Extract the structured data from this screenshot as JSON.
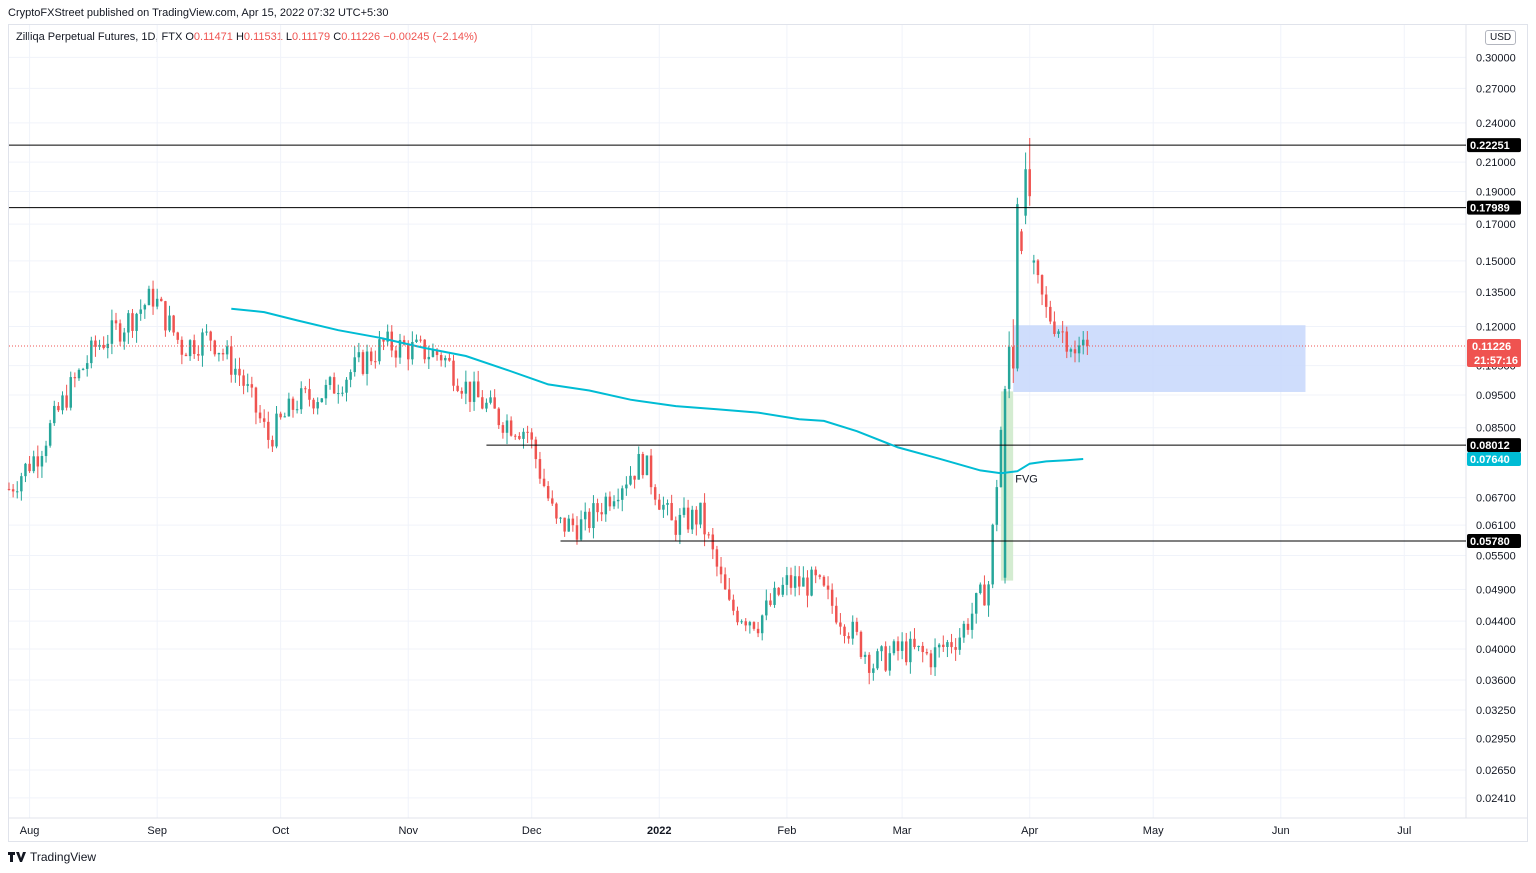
{
  "header": {
    "publisher": "CryptoFXStreet published on TradingView.com, Apr 15, 2022 07:32 UTC+5:30",
    "symbol": "Zilliqa Perpetual Futures, 1D, FTX",
    "o_label": "O",
    "o_value": "0.11471",
    "h_label": "H",
    "h_value": "0.11531",
    "l_label": "L",
    "l_value": "0.11179",
    "c_label": "C",
    "c_value": "0.11226",
    "change": "−0.00245 (−2.14%)"
  },
  "currency": "USD",
  "branding": "TradingView",
  "chart_data": {
    "type": "candlestick",
    "scale": "log",
    "ylim": [
      0.0225,
      0.335
    ],
    "price_ticks": [
      "0.30000",
      "0.27000",
      "0.24000",
      "0.21000",
      "0.19000",
      "0.17000",
      "0.15000",
      "0.13500",
      "0.12000",
      "0.10500",
      "0.09500",
      "0.08500",
      "0.06700",
      "0.06100",
      "0.05500",
      "0.04900",
      "0.04400",
      "0.04000",
      "0.03600",
      "0.03250",
      "0.02950",
      "0.02650",
      "0.02410"
    ],
    "time_labels": [
      "Aug",
      "Sep",
      "Oct",
      "Nov",
      "Dec",
      "2022",
      "Feb",
      "Mar",
      "Apr",
      "May",
      "Jun",
      "Jul"
    ],
    "time_start": "2021-07-27",
    "time_end": "2022-07-16",
    "horizontal_levels": [
      {
        "value": 0.22251,
        "label": "0.22251",
        "from": "2021-07-27"
      },
      {
        "value": 0.17989,
        "label": "0.17989",
        "from": "2021-07-27"
      },
      {
        "value": 0.08012,
        "label": "0.08012",
        "from": "2021-11-20"
      },
      {
        "value": 0.0578,
        "label": "0.05780",
        "from": "2021-12-08"
      }
    ],
    "sma_label": "0.07640",
    "last_price": {
      "value": 0.11226,
      "label": "0.11226",
      "countdown": "21:57:16"
    },
    "fvg_label": "FVG",
    "sma_200": [
      [
        "2021-09-19",
        0.1275
      ],
      [
        "2021-09-27",
        0.126
      ],
      [
        "2021-10-05",
        0.1225
      ],
      [
        "2021-10-15",
        0.1185
      ],
      [
        "2021-10-25",
        0.1155
      ],
      [
        "2021-11-05",
        0.1115
      ],
      [
        "2021-11-15",
        0.1085
      ],
      [
        "2021-11-25",
        0.1035
      ],
      [
        "2021-12-05",
        0.0985
      ],
      [
        "2021-12-15",
        0.0965
      ],
      [
        "2021-12-25",
        0.0935
      ],
      [
        "2022-01-05",
        0.0915
      ],
      [
        "2022-01-15",
        0.0905
      ],
      [
        "2022-01-25",
        0.0895
      ],
      [
        "2022-02-04",
        0.0875
      ],
      [
        "2022-02-10",
        0.087
      ],
      [
        "2022-02-18",
        0.084
      ],
      [
        "2022-02-28",
        0.0795
      ],
      [
        "2022-03-10",
        0.0765
      ],
      [
        "2022-03-20",
        0.0735
      ],
      [
        "2022-03-25",
        0.0728
      ],
      [
        "2022-03-29",
        0.0733
      ],
      [
        "2022-04-01",
        0.0752
      ],
      [
        "2022-04-05",
        0.0758
      ],
      [
        "2022-04-10",
        0.0761
      ],
      [
        "2022-04-14",
        0.0764
      ]
    ],
    "demand_zone": {
      "from": "2022-03-28",
      "to": "2022-06-07",
      "low": 0.096,
      "high": 0.1205
    },
    "fvg_zone": {
      "from": "2022-03-25",
      "to": "2022-03-27",
      "low": 0.0505,
      "high": 0.0962
    },
    "candles_weekly_close": [
      [
        "2021-07-27",
        0.069
      ],
      [
        "2021-08-03",
        0.078
      ],
      [
        "2021-08-10",
        0.095
      ],
      [
        "2021-08-17",
        0.112
      ],
      [
        "2021-08-24",
        0.121
      ],
      [
        "2021-08-31",
        0.133
      ],
      [
        "2021-09-07",
        0.112
      ],
      [
        "2021-09-14",
        0.116
      ],
      [
        "2021-09-21",
        0.102
      ],
      [
        "2021-09-28",
        0.082
      ],
      [
        "2021-10-05",
        0.093
      ],
      [
        "2021-10-12",
        0.096
      ],
      [
        "2021-10-19",
        0.104
      ],
      [
        "2021-10-26",
        0.113
      ],
      [
        "2021-11-02",
        0.111
      ],
      [
        "2021-11-09",
        0.109
      ],
      [
        "2021-11-16",
        0.096
      ],
      [
        "2021-11-23",
        0.088
      ],
      [
        "2021-11-30",
        0.084
      ],
      [
        "2021-12-07",
        0.061
      ],
      [
        "2021-12-14",
        0.061
      ],
      [
        "2021-12-21",
        0.069
      ],
      [
        "2021-12-28",
        0.076
      ],
      [
        "2022-01-04",
        0.061
      ],
      [
        "2022-01-11",
        0.063
      ],
      [
        "2022-01-18",
        0.046
      ],
      [
        "2022-01-25",
        0.044
      ],
      [
        "2022-02-01",
        0.05
      ],
      [
        "2022-02-08",
        0.05
      ],
      [
        "2022-02-15",
        0.044
      ],
      [
        "2022-02-22",
        0.038
      ],
      [
        "2022-03-01",
        0.04
      ],
      [
        "2022-03-08",
        0.039
      ],
      [
        "2022-03-15",
        0.042
      ],
      [
        "2022-03-22",
        0.05
      ],
      [
        "2022-03-29",
        0.17
      ],
      [
        "2022-04-05",
        0.126
      ],
      [
        "2022-04-12",
        0.112
      ]
    ]
  },
  "colors": {
    "up": "#26a69a",
    "down": "#ef5350",
    "sma": "#00bcd4",
    "level": "#000000",
    "zone": "#c7d7fb",
    "fvg": "#d4ecd1"
  }
}
